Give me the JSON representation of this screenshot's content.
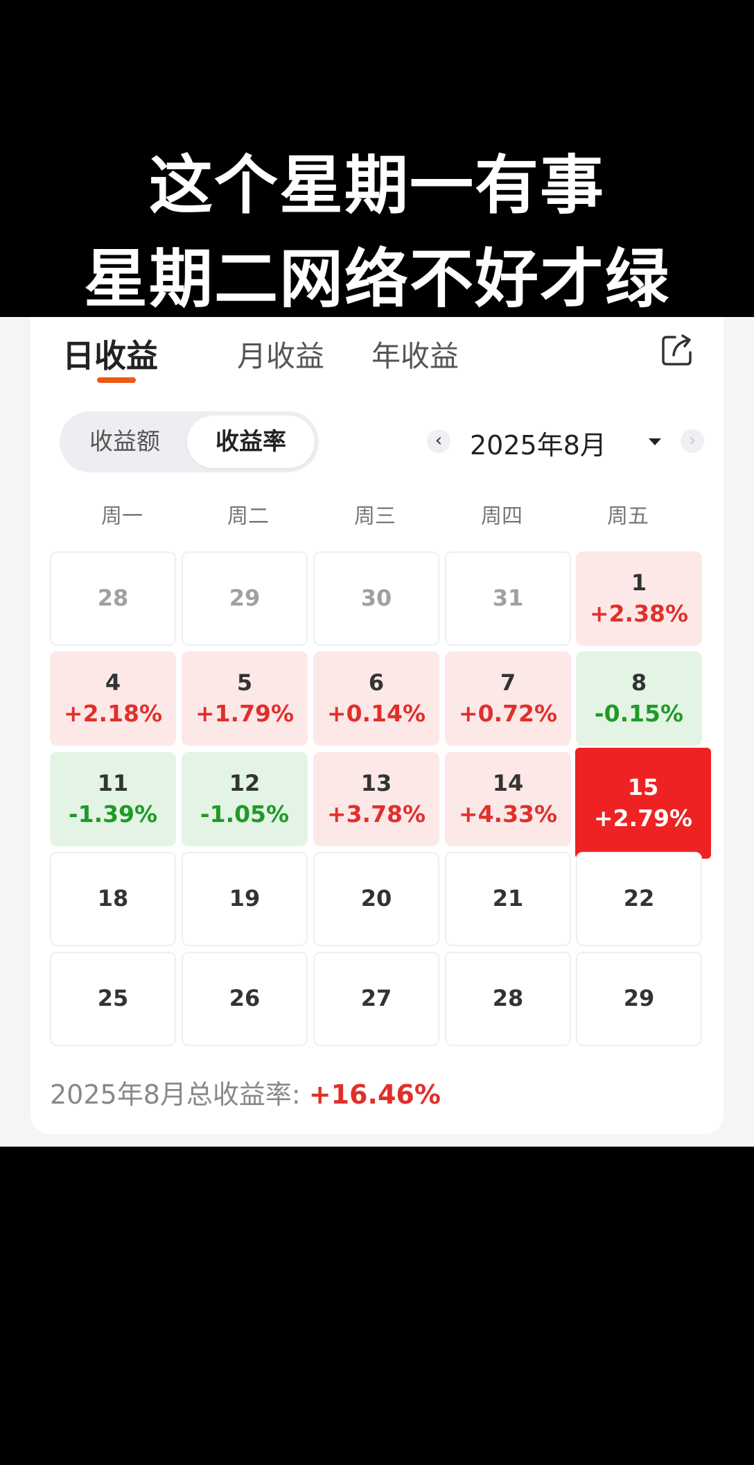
{
  "caption": {
    "line1": "这个星期一有事",
    "line2": "星期二网络不好才绿"
  },
  "tabs": [
    {
      "label": "日收益",
      "active": true
    },
    {
      "label": "月收益",
      "active": false
    },
    {
      "label": "年收益",
      "active": false
    }
  ],
  "share_icon": "share-icon",
  "toggle": [
    {
      "label": "收益额",
      "selected": false
    },
    {
      "label": "收益率",
      "selected": true
    }
  ],
  "month_nav": {
    "prev": "‹",
    "label": "2025年8月",
    "next": "›"
  },
  "weekdays": [
    "周一",
    "周二",
    "周三",
    "周四",
    "周五"
  ],
  "calendar": [
    [
      {
        "day": "28",
        "rate": "",
        "status": "other"
      },
      {
        "day": "29",
        "rate": "",
        "status": "other"
      },
      {
        "day": "30",
        "rate": "",
        "status": "other"
      },
      {
        "day": "31",
        "rate": "",
        "status": "other"
      },
      {
        "day": "1",
        "rate": "+2.38%",
        "status": "pos"
      }
    ],
    [
      {
        "day": "4",
        "rate": "+2.18%",
        "status": "pos"
      },
      {
        "day": "5",
        "rate": "+1.79%",
        "status": "pos"
      },
      {
        "day": "6",
        "rate": "+0.14%",
        "status": "pos"
      },
      {
        "day": "7",
        "rate": "+0.72%",
        "status": "pos"
      },
      {
        "day": "8",
        "rate": "-0.15%",
        "status": "neg"
      }
    ],
    [
      {
        "day": "11",
        "rate": "-1.39%",
        "status": "neg"
      },
      {
        "day": "12",
        "rate": "-1.05%",
        "status": "neg"
      },
      {
        "day": "13",
        "rate": "+3.78%",
        "status": "pos"
      },
      {
        "day": "14",
        "rate": "+4.33%",
        "status": "pos"
      },
      {
        "day": "15",
        "rate": "+2.79%",
        "status": "today"
      }
    ],
    [
      {
        "day": "18",
        "rate": "",
        "status": "future"
      },
      {
        "day": "19",
        "rate": "",
        "status": "future"
      },
      {
        "day": "20",
        "rate": "",
        "status": "future"
      },
      {
        "day": "21",
        "rate": "",
        "status": "future"
      },
      {
        "day": "22",
        "rate": "",
        "status": "future"
      }
    ],
    [
      {
        "day": "25",
        "rate": "",
        "status": "future"
      },
      {
        "day": "26",
        "rate": "",
        "status": "future"
      },
      {
        "day": "27",
        "rate": "",
        "status": "future"
      },
      {
        "day": "28",
        "rate": "",
        "status": "future"
      },
      {
        "day": "29",
        "rate": "",
        "status": "future"
      }
    ]
  ],
  "summary": {
    "label": "2025年8月总收益率: ",
    "value": "+16.46%"
  },
  "colors": {
    "positive": "#e0302b",
    "negative": "#1f9a28",
    "today": "#ee2222",
    "accent": "#ec5a14"
  }
}
